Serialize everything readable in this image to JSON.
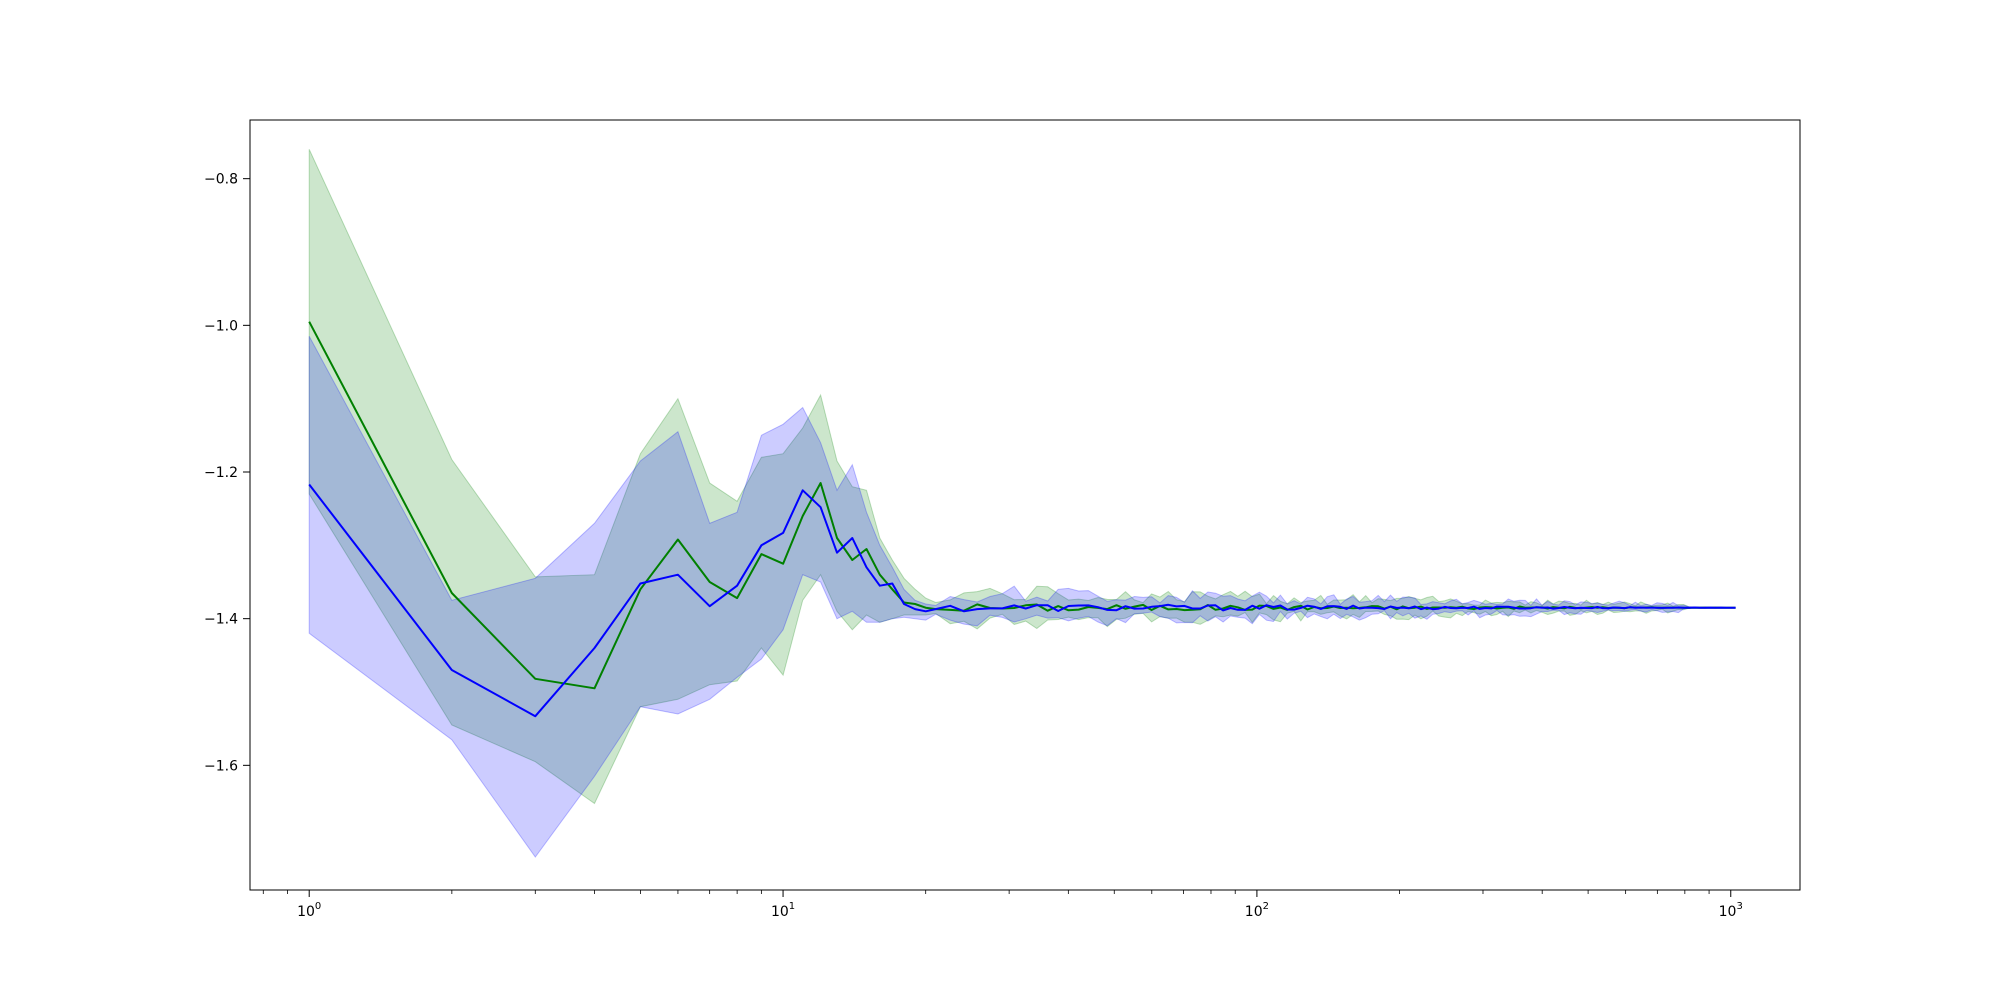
{
  "chart_data": {
    "type": "line",
    "title": "",
    "xlabel": "",
    "ylabel": "",
    "x_scale": "log",
    "xlim": [
      0.75,
      1400
    ],
    "ylim": [
      -1.77,
      -0.72
    ],
    "x_ticks": [
      {
        "value": 1,
        "base": "10",
        "exp": "0"
      },
      {
        "value": 10,
        "base": "10",
        "exp": "1"
      },
      {
        "value": 100,
        "base": "10",
        "exp": "2"
      },
      {
        "value": 1000,
        "base": "10",
        "exp": "3"
      }
    ],
    "y_ticks": [
      {
        "value": -0.8,
        "label": "−0.8"
      },
      {
        "value": -1.0,
        "label": "−1.0"
      },
      {
        "value": -1.2,
        "label": "−1.2"
      },
      {
        "value": -1.4,
        "label": "−1.4"
      },
      {
        "value": -1.6,
        "label": "−1.6"
      }
    ],
    "grid": false,
    "legend": "none",
    "tail_value": -1.385,
    "tail_end": 1024,
    "series": [
      {
        "color": "#008000",
        "band_color": "#008000",
        "band_opacity": 0.2,
        "x": [
          1,
          2,
          3,
          4,
          5,
          6,
          7,
          8,
          9,
          10,
          11,
          12,
          13,
          14,
          15,
          16,
          17,
          18,
          19,
          20,
          21
        ],
        "y": [
          -0.995,
          -1.365,
          -1.482,
          -1.495,
          -1.36,
          -1.292,
          -1.35,
          -1.372,
          -1.312,
          -1.325,
          -1.26,
          -1.215,
          -1.29,
          -1.32,
          -1.305,
          -1.34,
          -1.36,
          -1.378,
          -1.38,
          -1.385,
          -1.387
        ],
        "lower": [
          -1.23,
          -1.545,
          -1.595,
          -1.652,
          -1.52,
          -1.51,
          -1.49,
          -1.485,
          -1.44,
          -1.477,
          -1.375,
          -1.34,
          -1.39,
          -1.415,
          -1.395,
          -1.405,
          -1.4,
          -1.395,
          -1.395,
          -1.395,
          -1.393
        ],
        "upper": [
          -0.76,
          -1.183,
          -1.343,
          -1.34,
          -1.175,
          -1.1,
          -1.215,
          -1.24,
          -1.18,
          -1.175,
          -1.14,
          -1.095,
          -1.185,
          -1.22,
          -1.225,
          -1.29,
          -1.32,
          -1.345,
          -1.36,
          -1.372,
          -1.378
        ]
      },
      {
        "color": "#0000ff",
        "band_color": "#0000ff",
        "band_opacity": 0.2,
        "x": [
          1,
          2,
          3,
          4,
          5,
          6,
          7,
          8,
          9,
          10,
          11,
          12,
          13,
          14,
          15,
          16,
          17,
          18,
          19,
          20,
          21
        ],
        "y": [
          -1.217,
          -1.47,
          -1.533,
          -1.44,
          -1.352,
          -1.34,
          -1.383,
          -1.355,
          -1.3,
          -1.283,
          -1.225,
          -1.248,
          -1.31,
          -1.29,
          -1.33,
          -1.355,
          -1.352,
          -1.38,
          -1.387,
          -1.39,
          -1.387
        ],
        "lower": [
          -1.42,
          -1.565,
          -1.725,
          -1.615,
          -1.52,
          -1.53,
          -1.51,
          -1.48,
          -1.455,
          -1.415,
          -1.34,
          -1.35,
          -1.4,
          -1.39,
          -1.405,
          -1.405,
          -1.4,
          -1.398,
          -1.4,
          -1.402,
          -1.394
        ],
        "upper": [
          -1.015,
          -1.375,
          -1.345,
          -1.27,
          -1.185,
          -1.145,
          -1.27,
          -1.255,
          -1.15,
          -1.135,
          -1.112,
          -1.16,
          -1.225,
          -1.19,
          -1.255,
          -1.3,
          -1.33,
          -1.36,
          -1.375,
          -1.38,
          -1.382
        ]
      }
    ]
  }
}
